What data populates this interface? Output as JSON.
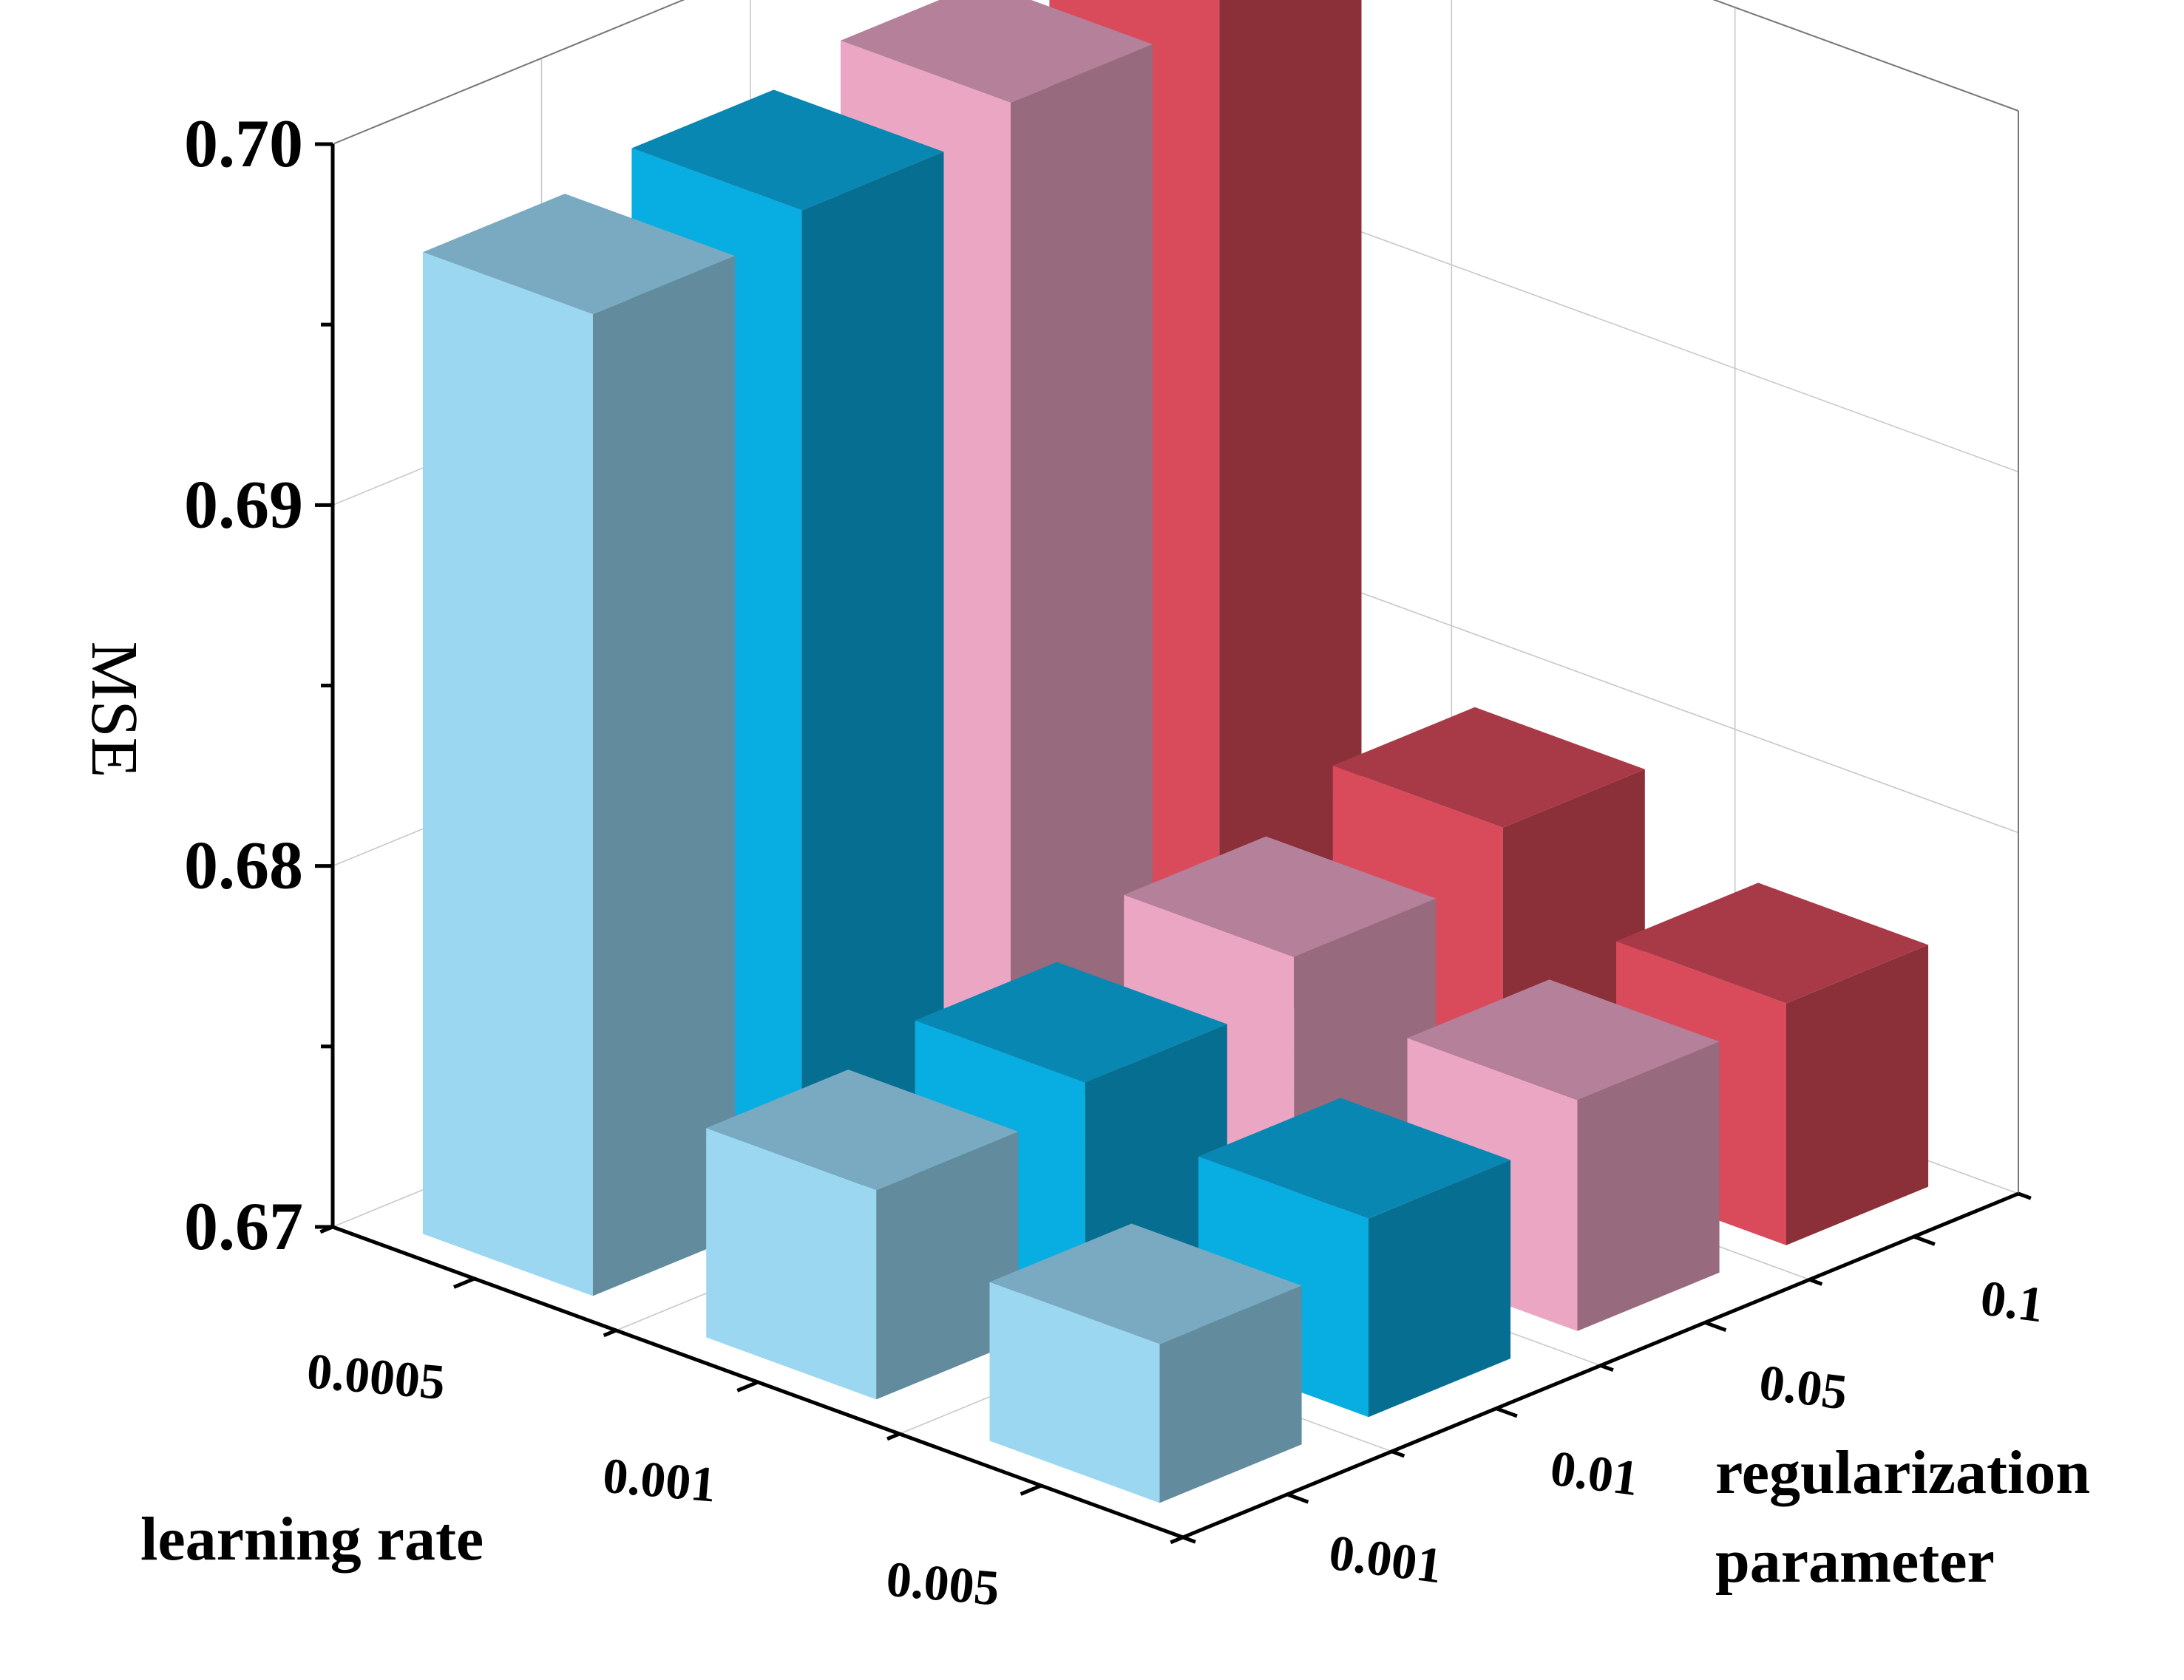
{
  "chart_data": {
    "type": "bar3d",
    "zlabel": "MSE",
    "xlabel": "learning rate",
    "ylabel_lines": [
      "regularization",
      "parameter"
    ],
    "zlim": [
      0.67,
      0.7
    ],
    "z_ticks": [
      "0.67",
      "0.68",
      "0.69",
      "0.70"
    ],
    "learning_rates": [
      "0.0005",
      "0.001",
      "0.005"
    ],
    "regularization_params": [
      "0.001",
      "0.01",
      "0.05",
      "0.1"
    ],
    "grid": true,
    "series": [
      {
        "reg": "0.001",
        "color_front": "#9bd7f0",
        "color_side": "#628b9d",
        "color_top": "#79aac1",
        "values": [
          0.6972,
          0.6758,
          0.6744
        ]
      },
      {
        "reg": "0.01",
        "color_front": "#08ade2",
        "color_side": "#066f91",
        "color_top": "#0887b3",
        "values": [
          0.6977,
          0.6764,
          0.6755
        ]
      },
      {
        "reg": "0.05",
        "color_front": "#eba6c3",
        "color_side": "#976a7d",
        "color_top": "#b4809a",
        "values": [
          0.6983,
          0.6775,
          0.6764
        ]
      },
      {
        "reg": "0.1",
        "color_front": "#d94a5a",
        "color_side": "#8b2f39",
        "color_top": "#a83a48",
        "values": [
          0.699,
          0.6787,
          0.6767
        ]
      }
    ]
  }
}
